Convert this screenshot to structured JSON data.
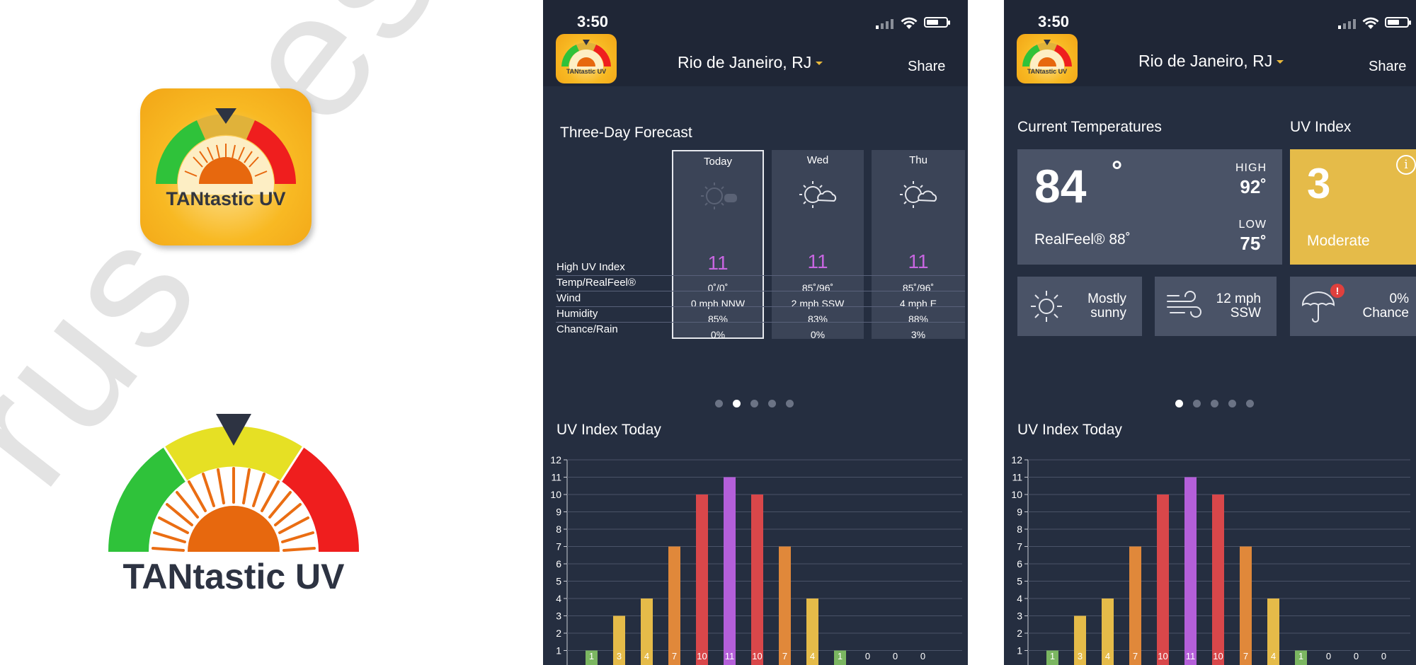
{
  "logo": {
    "watermark_text": "rus Design",
    "small_icon_title": "TANtastic UV",
    "large_title": "TANtastic UV",
    "colors": {
      "green": "#2fc23a",
      "yellow": "#e6e024",
      "red": "#ef1e1e",
      "sun": "#e7680e",
      "pointer": "#2d3342"
    }
  },
  "status_bar": {
    "time": "3:50"
  },
  "header": {
    "app_icon_label": "TANtastic UV",
    "location": "Rio de Janeiro, RJ",
    "share_label": "Share"
  },
  "forecast": {
    "title": "Three-Day Forecast",
    "row_labels": [
      "High UV Index",
      "Temp/RealFeel®",
      "Wind",
      "Humidity",
      "Chance/Rain"
    ],
    "days": [
      {
        "day": "Today",
        "icon": "sunny-icon",
        "uv": "11",
        "temp": "0˚/0˚",
        "wind": "0 mph NNW",
        "humidity": "85%",
        "rain": "0%"
      },
      {
        "day": "Wed",
        "icon": "partly-cloudy-icon",
        "uv": "11",
        "temp": "85˚/96˚",
        "wind": "2 mph SSW",
        "humidity": "83%",
        "rain": "0%"
      },
      {
        "day": "Thu",
        "icon": "partly-cloudy-icon",
        "uv": "11",
        "temp": "85˚/96˚",
        "wind": "4 mph E",
        "humidity": "88%",
        "rain": "3%"
      }
    ]
  },
  "current": {
    "title": "Current Temperatures",
    "temp": "84",
    "deg": "°",
    "high_label": "HIGH",
    "high": "92˚",
    "low_label": "LOW",
    "low": "75˚",
    "realfeel": "RealFeel® 88˚",
    "uv_title": "UV Index",
    "uv_value": "3",
    "uv_desc": "Moderate",
    "info_label": "i",
    "sky_line1": "Mostly",
    "sky_line2": "sunny",
    "wind_line1": "12 mph",
    "wind_line2": "SSW",
    "rain_line1": "0%",
    "rain_line2": "Chance",
    "alert": "!"
  },
  "pager": {
    "phone1_active": 1,
    "phone2_active": 0,
    "count": 5
  },
  "uv_today": {
    "title": "UV Index Today"
  },
  "chart_data": {
    "type": "bar",
    "title": "UV Index Today",
    "yticks": [
      "1",
      "2",
      "3",
      "4",
      "5",
      "6",
      "7",
      "8",
      "9",
      "10",
      "11",
      "12"
    ],
    "ylim": [
      0,
      12
    ],
    "values": [
      1,
      3,
      4,
      7,
      10,
      11,
      10,
      7,
      4,
      1,
      0,
      0,
      0
    ],
    "labels": [
      "1",
      "3",
      "4",
      "7",
      "10",
      "11",
      "10",
      "7",
      "4",
      "1",
      "0",
      "0",
      "0"
    ],
    "colors": [
      "#7bb661",
      "#e5bb49",
      "#e5bb49",
      "#e0883a",
      "#d9474a",
      "#b45fd9",
      "#d9474a",
      "#e0883a",
      "#e5bb49",
      "#7bb661",
      "#7bb661",
      "#7bb661",
      "#7bb661"
    ]
  }
}
